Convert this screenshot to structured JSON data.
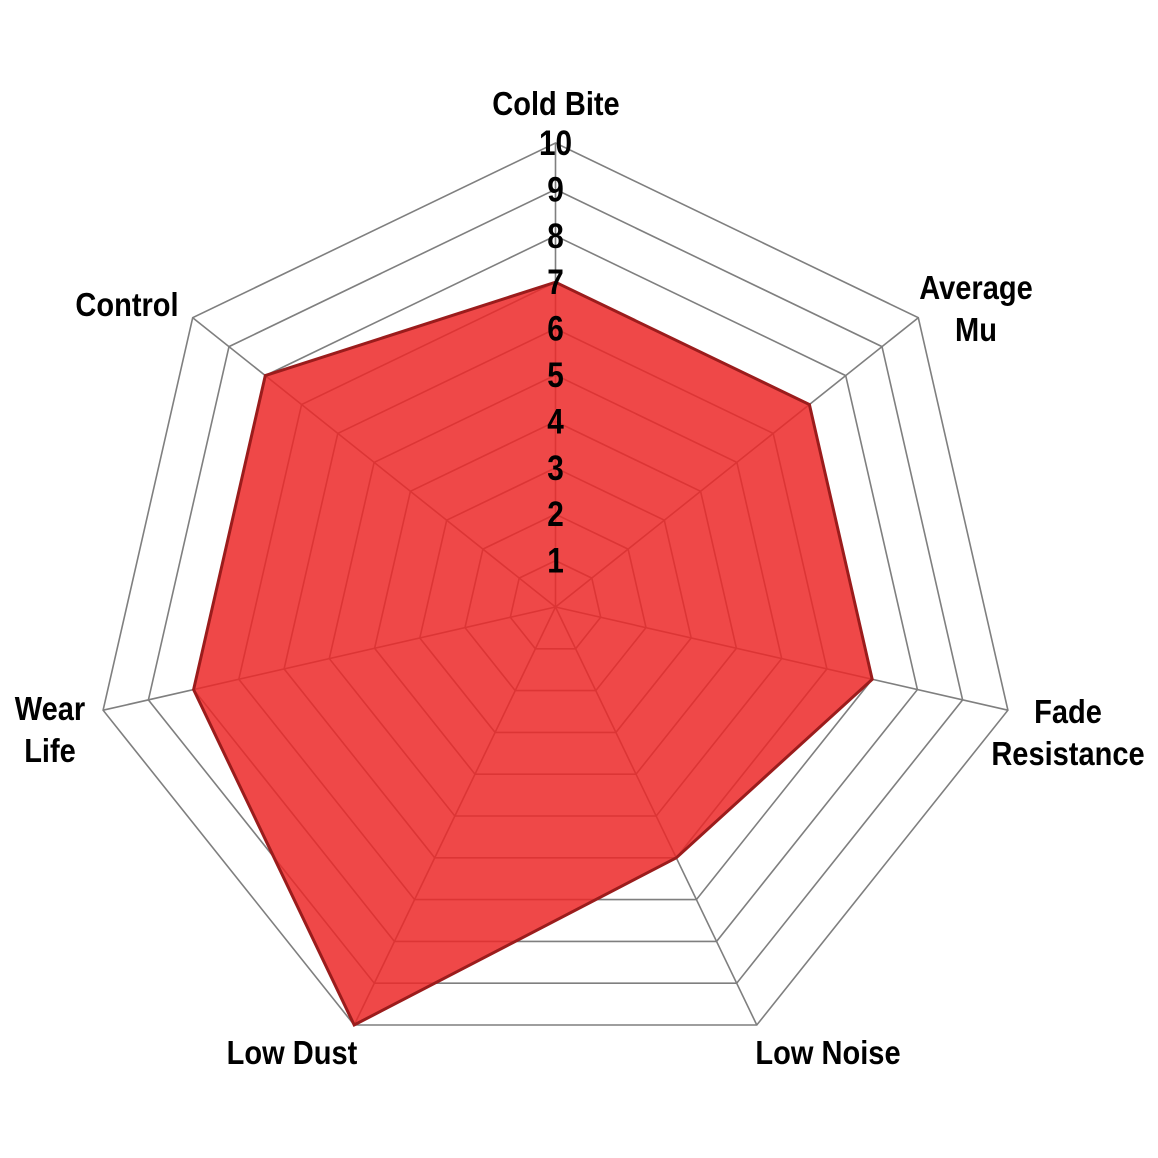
{
  "chart_data": {
    "type": "radar",
    "categories": [
      "Cold Bite",
      "Average Mu",
      "Fade Resistance",
      "Low Noise",
      "Low Dust",
      "Wear Life",
      "Control"
    ],
    "values": [
      7,
      7,
      7,
      6,
      10,
      8,
      8
    ],
    "tick_labels": [
      "1",
      "2",
      "3",
      "4",
      "5",
      "6",
      "7",
      "8",
      "9",
      "10"
    ],
    "scale_min": 0,
    "scale_max": 10,
    "scale_step": 1,
    "grid": "on",
    "legend": "none",
    "title": "",
    "colors": {
      "series_fill": "#ec2828",
      "series_fill_opacity": 0.85,
      "series_stroke": "#9b1c1c",
      "grid_line": "#7f7f7f",
      "label_text": "#000000",
      "background": "#ffffff"
    }
  }
}
